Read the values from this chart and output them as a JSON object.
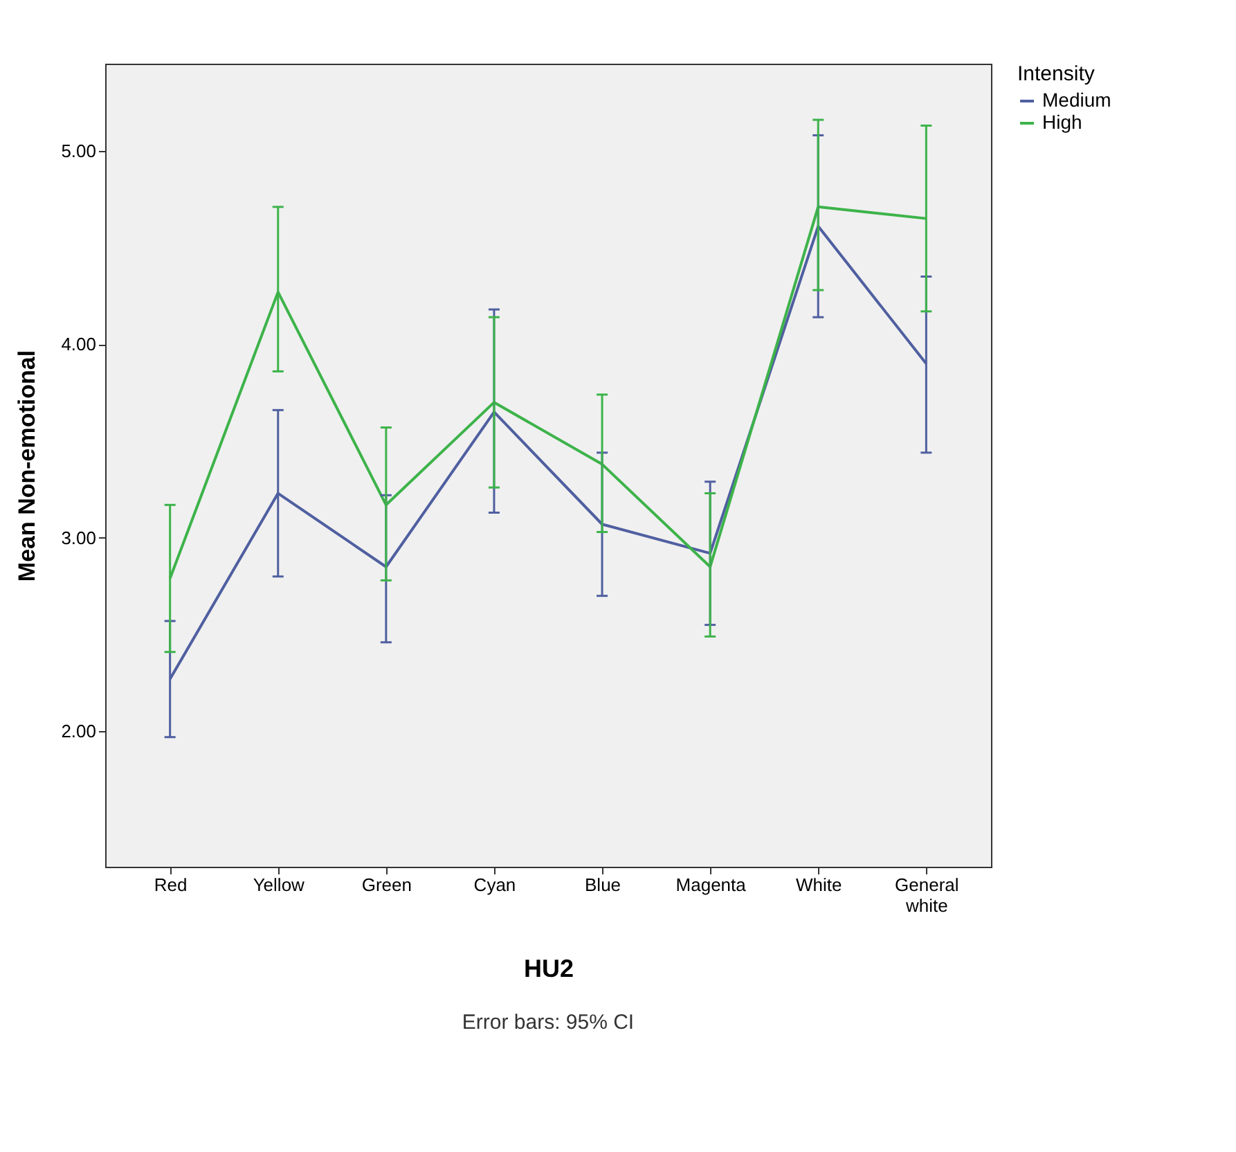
{
  "chart_data": {
    "type": "line",
    "xlabel": "HU2",
    "ylabel": "Mean Non-emotional",
    "legend_title": "Intensity",
    "legend": "top right",
    "categories": [
      "Red",
      "Yellow",
      "Green",
      "Cyan",
      "Blue",
      "Magenta",
      "White",
      "General white"
    ],
    "series": [
      {
        "name": "Medium",
        "color": "#4f5fa0",
        "values": [
          2.27,
          3.23,
          2.85,
          3.65,
          3.07,
          2.92,
          4.61,
          3.9
        ],
        "errors": [
          [
            1.97,
            2.57
          ],
          [
            2.8,
            3.66
          ],
          [
            2.46,
            3.22
          ],
          [
            3.13,
            4.18
          ],
          [
            2.7,
            3.44
          ],
          [
            2.55,
            3.29
          ],
          [
            4.14,
            5.08
          ],
          [
            3.44,
            4.35
          ]
        ]
      },
      {
        "name": "High",
        "color": "#3db34a",
        "values": [
          2.79,
          4.27,
          3.17,
          3.7,
          3.38,
          2.85,
          4.71,
          4.65
        ],
        "errors": [
          [
            2.41,
            3.17
          ],
          [
            3.86,
            4.71
          ],
          [
            2.78,
            3.57
          ],
          [
            3.26,
            4.14
          ],
          [
            3.03,
            3.74
          ],
          [
            2.49,
            3.23
          ],
          [
            4.28,
            5.16
          ],
          [
            4.17,
            5.13
          ]
        ]
      }
    ],
    "ylim": [
      1.3,
      5.45
    ],
    "yticks": [
      {
        "value": 2,
        "label": "2.00"
      },
      {
        "value": 3,
        "label": "3.00"
      },
      {
        "value": 4,
        "label": "4.00"
      },
      {
        "value": 5,
        "label": "5.00"
      }
    ],
    "grid": false,
    "marker": "none",
    "line_style": "solid",
    "annotations": [
      "Error bars: 95% CI"
    ]
  }
}
